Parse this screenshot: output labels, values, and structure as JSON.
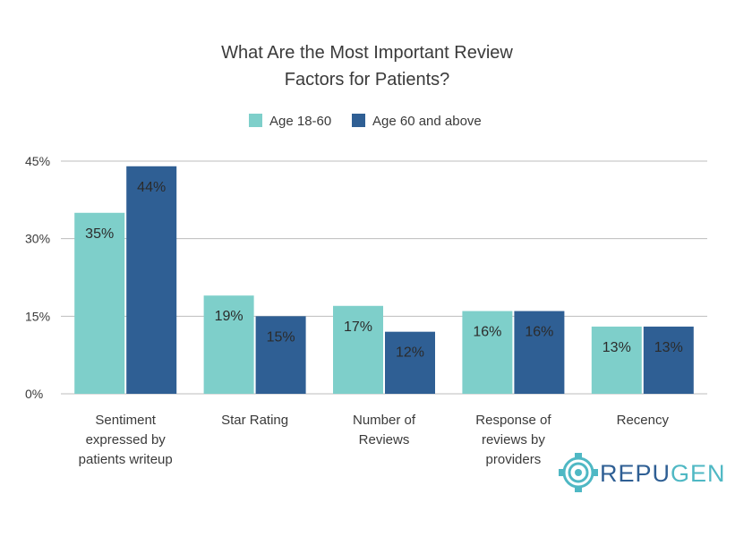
{
  "chart_data": {
    "type": "bar",
    "title": "What Are the Most Important Review Factors for Patients?",
    "title_lines": [
      "What Are the Most Important Review",
      "Factors for Patients?"
    ],
    "categories": [
      "Sentiment expressed by patients writeup",
      "Star Rating",
      "Number of Reviews",
      "Response of reviews by providers",
      "Recency"
    ],
    "category_lines": [
      [
        "Sentiment",
        "expressed by",
        "patients writeup"
      ],
      [
        "Star Rating"
      ],
      [
        "Number of",
        "Reviews"
      ],
      [
        "Response of",
        "reviews by",
        "providers"
      ],
      [
        "Recency"
      ]
    ],
    "series": [
      {
        "name": "Age 18-60",
        "color": "#7ecfca",
        "values": [
          35,
          19,
          17,
          16,
          13
        ]
      },
      {
        "name": "Age 60 and above",
        "color": "#2f5f94",
        "values": [
          44,
          15,
          12,
          16,
          13
        ]
      }
    ],
    "ylim": [
      0,
      45
    ],
    "yticks": [
      0,
      15,
      30,
      45
    ],
    "ytick_labels": [
      "0%",
      "15%",
      "30%",
      "45%"
    ],
    "value_suffix": "%",
    "legend_position": "top-center",
    "grid": true
  },
  "logo": {
    "text_part1": "REPU",
    "text_part2": "GEN",
    "color1": "#2f5f94",
    "color2": "#4fb8c4"
  }
}
